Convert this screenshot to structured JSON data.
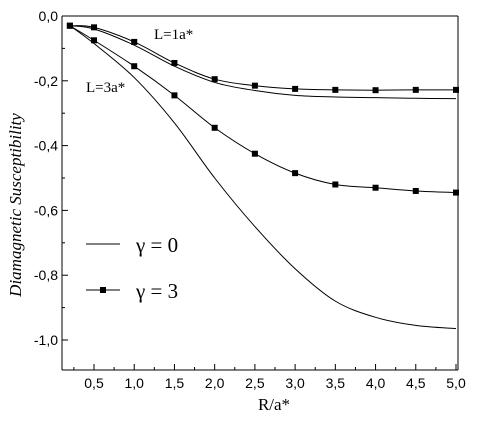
{
  "chart_data": {
    "type": "line",
    "xlabel": "R/a*",
    "ylabel": "Diamagnetic Susceptibility",
    "xlim": [
      0.2,
      5.0
    ],
    "ylim": [
      -1.1,
      0.0
    ],
    "x_ticks": [
      0.5,
      1.0,
      1.5,
      2.0,
      2.5,
      3.0,
      3.5,
      4.0,
      4.5,
      5.0
    ],
    "x_tick_labels": [
      "0,5",
      "1,0",
      "1,5",
      "2,0",
      "2,5",
      "3,0",
      "3,5",
      "4,0",
      "4,5",
      "5,0"
    ],
    "y_ticks": [
      0.0,
      -0.2,
      -0.4,
      -0.6,
      -0.8,
      -1.0
    ],
    "y_tick_labels": [
      "0,0",
      "-0,2",
      "-0,4",
      "-0,6",
      "-0,8",
      "-1,0"
    ],
    "grid": false,
    "legend_position": "left-middle",
    "legend": [
      {
        "label": "γ = 0",
        "style": "line"
      },
      {
        "label": "γ = 3",
        "style": "line-square"
      }
    ],
    "annotations": [
      {
        "text": "L=1a*",
        "x": 1.25,
        "y": -0.045
      },
      {
        "text": "L=3a*",
        "x": 0.17,
        "y": -0.205
      }
    ],
    "series": [
      {
        "style": "line",
        "curve": "L=1a*",
        "x": [
          0.2,
          0.5,
          1.0,
          1.5,
          2.0,
          2.5,
          3.0,
          3.5,
          4.0,
          4.5,
          5.0
        ],
        "y": [
          -0.03,
          -0.04,
          -0.09,
          -0.155,
          -0.205,
          -0.23,
          -0.245,
          -0.25,
          -0.252,
          -0.254,
          -0.255
        ]
      },
      {
        "style": "line-square",
        "curve": "L=1a*",
        "x": [
          0.2,
          0.5,
          1.0,
          1.5,
          2.0,
          2.5,
          3.0,
          3.5,
          4.0,
          4.5,
          5.0
        ],
        "y": [
          -0.03,
          -0.035,
          -0.08,
          -0.145,
          -0.195,
          -0.215,
          -0.225,
          -0.228,
          -0.229,
          -0.228,
          -0.228
        ]
      },
      {
        "style": "line",
        "curve": "L=3a*",
        "x": [
          0.2,
          0.5,
          1.0,
          1.5,
          2.0,
          2.5,
          3.0,
          3.5,
          4.0,
          4.5,
          5.0
        ],
        "y": [
          -0.03,
          -0.085,
          -0.19,
          -0.33,
          -0.5,
          -0.65,
          -0.78,
          -0.88,
          -0.93,
          -0.955,
          -0.965
        ]
      },
      {
        "style": "line-square",
        "curve": "L=3a*",
        "x": [
          0.2,
          0.5,
          1.0,
          1.5,
          2.0,
          2.5,
          3.0,
          3.5,
          4.0,
          4.5,
          5.0
        ],
        "y": [
          -0.03,
          -0.075,
          -0.155,
          -0.245,
          -0.345,
          -0.425,
          -0.485,
          -0.52,
          -0.53,
          -0.54,
          -0.545
        ]
      }
    ]
  }
}
